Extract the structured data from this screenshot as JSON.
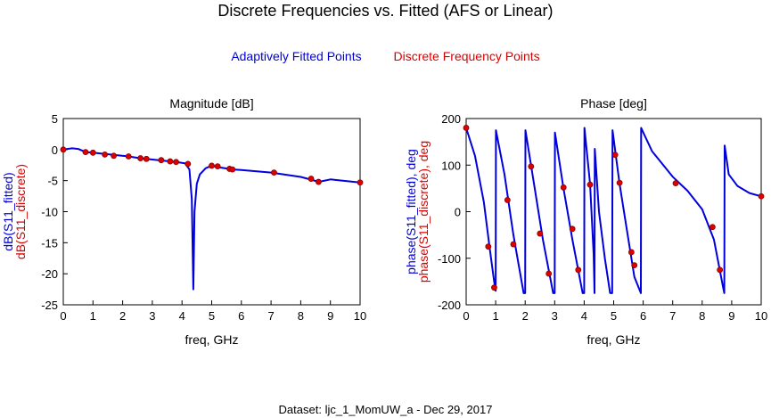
{
  "title": "Discrete Frequencies vs. Fitted (AFS or Linear)",
  "legend": [
    {
      "label": "Adaptively Fitted Points",
      "color": "#0000dd"
    },
    {
      "label": "Discrete Frequency Points",
      "color": "#dd0000"
    }
  ],
  "footer": "Dataset: ljc_1_MomUW_a - Dec 29, 2017",
  "chart_data": [
    {
      "type": "line",
      "title": "Magnitude [dB]",
      "xlabel": "freq, GHz",
      "ylabels": [
        {
          "text": "dB(S11_fitted)",
          "color": "#0000dd"
        },
        {
          "text": "dB(S11_discrete)",
          "color": "#dd0000"
        }
      ],
      "xlim": [
        0,
        10
      ],
      "ylim": [
        -25,
        5
      ],
      "xticks": [
        "0",
        "1",
        "2",
        "3",
        "4",
        "5",
        "6",
        "7",
        "8",
        "9",
        "10"
      ],
      "yticks": [
        "5",
        "0",
        "-5",
        "-10",
        "-15",
        "-20",
        "-25"
      ],
      "series": [
        {
          "color": "#0000dd",
          "x": [
            0,
            0.3,
            0.5,
            0.75,
            1,
            1.4,
            1.8,
            2.2,
            2.6,
            3,
            3.4,
            3.8,
            4.1,
            4.25,
            4.33,
            4.38,
            4.42,
            4.5,
            4.6,
            4.8,
            5.0,
            5.3,
            5.7,
            6,
            7,
            8,
            8.4,
            8.6,
            9,
            10
          ],
          "y": [
            0,
            0.2,
            0.1,
            -0.4,
            -0.5,
            -0.7,
            -0.9,
            -1.1,
            -1.4,
            -1.6,
            -1.8,
            -2.0,
            -2.2,
            -3.2,
            -8,
            -22.5,
            -10,
            -5.5,
            -4,
            -3,
            -2.6,
            -2.9,
            -3.2,
            -3.3,
            -3.7,
            -4.4,
            -4.9,
            -5.2,
            -4.8,
            -5.3
          ]
        },
        {
          "color": "#dd0000",
          "markers": true,
          "x": [
            0,
            0.75,
            1,
            1.4,
            1.7,
            2.2,
            2.6,
            2.8,
            3.3,
            3.6,
            3.8,
            4.2,
            5.0,
            5.2,
            5.6,
            5.7,
            7.1,
            8.35,
            8.6,
            10
          ],
          "y": [
            0,
            -0.4,
            -0.5,
            -0.8,
            -1.0,
            -1.1,
            -1.4,
            -1.5,
            -1.7,
            -1.9,
            -2.0,
            -2.3,
            -2.6,
            -2.7,
            -3.1,
            -3.2,
            -3.7,
            -4.7,
            -5.2,
            -5.3
          ]
        }
      ]
    },
    {
      "type": "line",
      "title": "Phase [deg]",
      "xlabel": "freq, GHz",
      "ylabels": [
        {
          "text": "phase(S11_fitted), deg",
          "color": "#0000dd"
        },
        {
          "text": "phase(S11_discrete), deg",
          "color": "#dd0000"
        }
      ],
      "xlim": [
        0,
        10
      ],
      "ylim": [
        -200,
        200
      ],
      "xticks": [
        "0",
        "1",
        "2",
        "3",
        "4",
        "5",
        "6",
        "7",
        "8",
        "9",
        "10"
      ],
      "yticks": [
        "200",
        "100",
        "0",
        "-100",
        "-200"
      ],
      "series": [
        {
          "color": "#0000dd",
          "x": [
            0,
            0.3,
            0.6,
            0.8,
            0.95,
            1.0,
            1.01,
            1.3,
            1.6,
            1.95,
            2.0,
            2.01,
            2.3,
            2.6,
            2.95,
            3.0,
            3.01,
            3.3,
            3.6,
            3.95,
            4.0,
            4.01,
            4.2,
            4.32,
            4.35,
            4.36,
            4.5,
            4.7,
            4.88,
            4.95,
            4.96,
            5.2,
            5.4,
            5.7,
            5.92,
            5.93,
            6.3,
            7.0,
            7.5,
            8.0,
            8.4,
            8.7,
            8.75,
            8.76,
            8.9,
            9.2,
            9.6,
            10
          ],
          "y": [
            180,
            120,
            20,
            -80,
            -150,
            -170,
            175,
            80,
            -50,
            -175,
            -175,
            175,
            60,
            -60,
            -175,
            -175,
            170,
            50,
            -60,
            -175,
            -175,
            180,
            60,
            -90,
            -175,
            135,
            0,
            -100,
            -175,
            -175,
            175,
            60,
            -20,
            -140,
            -175,
            180,
            130,
            75,
            45,
            5,
            -60,
            -160,
            -175,
            142,
            80,
            55,
            40,
            33
          ]
        },
        {
          "color": "#dd0000",
          "markers": true,
          "x": [
            0,
            0.75,
            0.95,
            1.4,
            1.6,
            2.2,
            2.5,
            2.8,
            3.3,
            3.6,
            3.8,
            4.2,
            5.05,
            5.2,
            5.6,
            5.7,
            7.1,
            8.35,
            8.6,
            10
          ],
          "y": [
            180,
            -75,
            -163,
            25,
            -70,
            97,
            -47,
            -133,
            52,
            -37,
            -125,
            58,
            122,
            62,
            -87,
            -115,
            61,
            -33,
            -125,
            33
          ]
        }
      ]
    }
  ]
}
